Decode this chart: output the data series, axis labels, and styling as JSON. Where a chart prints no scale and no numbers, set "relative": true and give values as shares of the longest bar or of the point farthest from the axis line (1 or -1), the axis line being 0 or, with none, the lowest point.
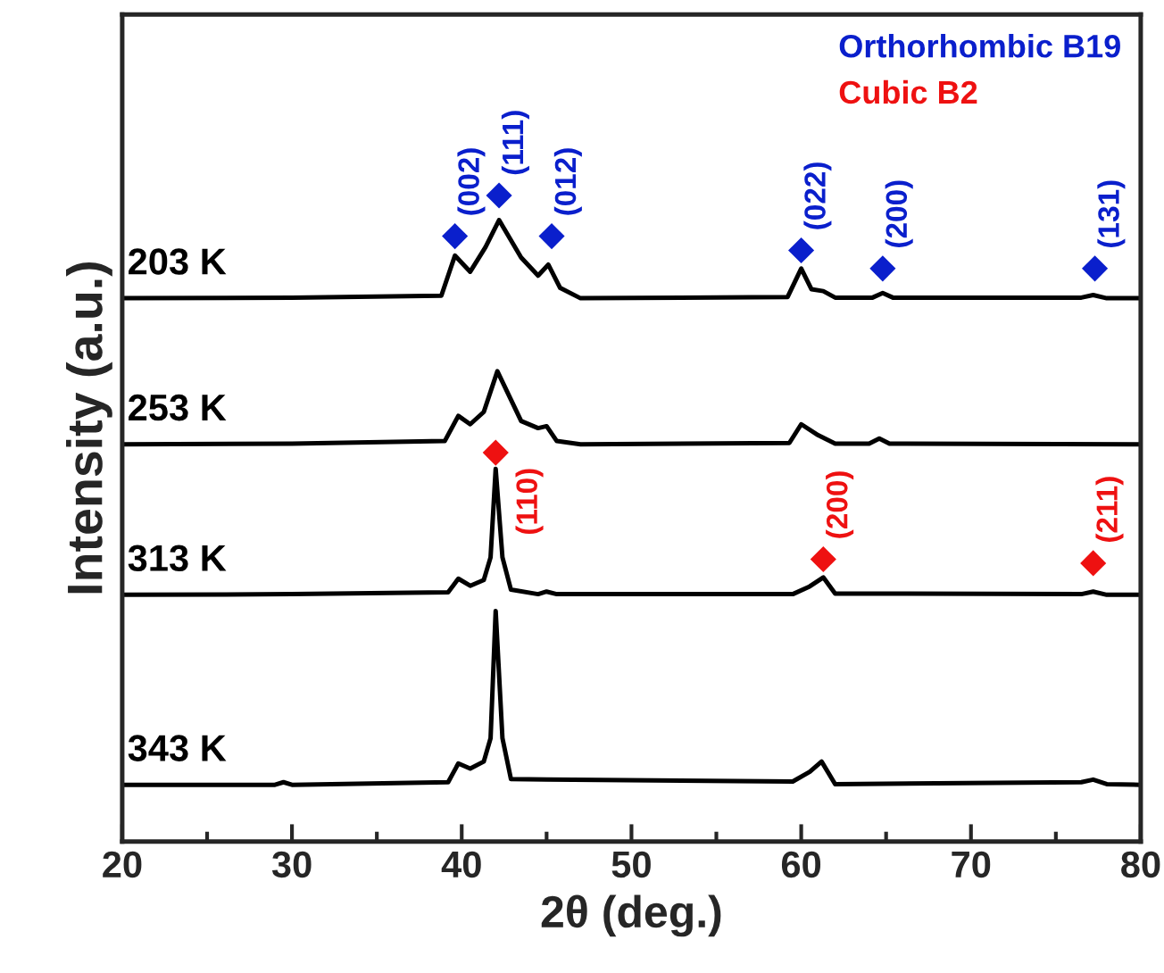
{
  "chart_data": {
    "type": "line",
    "relative": true,
    "xlabel": "2θ (deg.)",
    "ylabel": "Intensity (a.u.)",
    "xlim": [
      20,
      80
    ],
    "xticks": [
      20,
      {
        "value": 25,
        "label": null
      },
      30,
      {
        "value": 35,
        "label": null
      },
      40,
      {
        "value": 45,
        "label": null
      },
      50,
      {
        "value": 55,
        "label": null
      },
      60,
      {
        "value": 65,
        "label": null
      },
      70,
      {
        "value": 75,
        "label": null
      },
      80
    ],
    "tick_labels": "x",
    "legend": "top right",
    "grid": false,
    "series": [
      {
        "name": "203 K",
        "color": "#000000",
        "x": [
          20,
          30,
          38.8,
          39.6,
          40.5,
          41.4,
          42.2,
          43.5,
          44.5,
          45.1,
          45.8,
          47,
          59.2,
          60,
          60.6,
          61.3,
          62,
          64.2,
          64.8,
          65.4,
          76.5,
          77.2,
          78,
          80
        ],
        "values": [
          0.841,
          0.842,
          0.845,
          0.907,
          0.882,
          0.92,
          0.962,
          0.904,
          0.876,
          0.893,
          0.857,
          0.841,
          0.843,
          0.887,
          0.855,
          0.852,
          0.842,
          0.842,
          0.849,
          0.842,
          0.842,
          0.846,
          0.841,
          0.841
        ]
      },
      {
        "name": "253 K",
        "color": "#000000",
        "x": [
          20,
          30,
          39.0,
          39.8,
          40.5,
          41.3,
          42.1,
          43.5,
          44.5,
          45.0,
          45.6,
          47,
          59.3,
          60,
          61.0,
          62,
          64.0,
          64.6,
          65.2,
          80
        ],
        "values": [
          0.615,
          0.616,
          0.62,
          0.659,
          0.646,
          0.665,
          0.728,
          0.651,
          0.64,
          0.643,
          0.62,
          0.615,
          0.617,
          0.646,
          0.629,
          0.616,
          0.616,
          0.624,
          0.616,
          0.615
        ]
      },
      {
        "name": "313 K",
        "color": "#000000",
        "x": [
          20,
          30,
          39.2,
          39.8,
          40.5,
          41.3,
          41.7,
          42.0,
          42.4,
          42.9,
          44.5,
          45.0,
          45.6,
          59.5,
          60.5,
          61.3,
          62.0,
          76.5,
          77.2,
          78,
          80
        ],
        "values": [
          0.382,
          0.383,
          0.386,
          0.407,
          0.396,
          0.405,
          0.44,
          0.577,
          0.44,
          0.39,
          0.383,
          0.387,
          0.383,
          0.383,
          0.395,
          0.409,
          0.384,
          0.383,
          0.387,
          0.382,
          0.382
        ]
      },
      {
        "name": "343 K",
        "color": "#000000",
        "x": [
          20,
          29,
          29.5,
          30,
          39.2,
          39.8,
          40.5,
          41.3,
          41.7,
          42.0,
          42.4,
          42.9,
          45.0,
          59.5,
          60.5,
          61.2,
          62.0,
          76.5,
          77.2,
          78,
          80
        ],
        "values": [
          0.088,
          0.088,
          0.092,
          0.088,
          0.092,
          0.121,
          0.113,
          0.124,
          0.16,
          0.357,
          0.16,
          0.097,
          0.096,
          0.093,
          0.108,
          0.124,
          0.089,
          0.092,
          0.096,
          0.089,
          0.088
        ]
      },
      {
        "name": "Orthorhombic B19",
        "type": "scatter",
        "marker": "diamond",
        "color": "#0a1fcc",
        "x": [
          39.6,
          42.2,
          45.3,
          60.0,
          64.8,
          77.3
        ],
        "values": [
          0.937,
          1.0,
          0.937,
          0.915,
          0.887,
          0.887
        ]
      },
      {
        "name": "Cubic B2",
        "type": "scatter",
        "marker": "diamond",
        "color": "#ee1111",
        "x": [
          42.0,
          61.3,
          77.2
        ],
        "values": [
          0.602,
          0.437,
          0.431
        ]
      }
    ],
    "annotations": [
      {
        "text": "(002)",
        "x": 39.6,
        "y": 0.937
      },
      {
        "text": "(111)",
        "x": 42.2,
        "y": 1.0
      },
      {
        "text": "(012)",
        "x": 45.3,
        "y": 0.937
      },
      {
        "text": "(022)",
        "x": 60.0,
        "y": 0.915
      },
      {
        "text": "(200)",
        "x": 64.8,
        "y": 0.887
      },
      {
        "text": "(131)",
        "x": 77.3,
        "y": 0.887
      },
      {
        "text": "(110)",
        "x": 42.0,
        "y": 0.602
      },
      {
        "text": "(200)",
        "x": 61.3,
        "y": 0.437
      },
      {
        "text": "(211)",
        "x": 77.2,
        "y": 0.431
      }
    ]
  }
}
